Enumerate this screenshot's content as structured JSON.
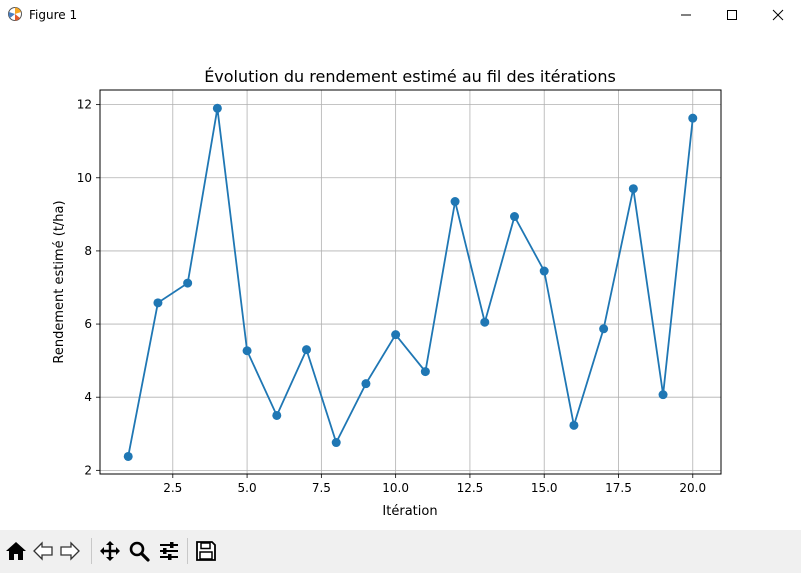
{
  "window": {
    "title": "Figure 1",
    "icon": "matplotlib-icon",
    "controls": [
      "minimize-icon",
      "maximize-icon",
      "close-icon"
    ]
  },
  "toolbar": {
    "buttons": [
      "home-icon",
      "back-arrow-icon",
      "forward-arrow-icon",
      "pan-move-icon",
      "zoom-magnifier-icon",
      "configure-subplots-icon",
      "save-disk-icon"
    ]
  },
  "colors": {
    "series": "#1f77b4",
    "grid": "#b0b0b0",
    "toolbar_bg": "#f0f0f0"
  },
  "chart_data": {
    "type": "line",
    "title": "Évolution du rendement estimé au fil des itérations",
    "xlabel": "Itération",
    "ylabel": "Rendement estimé (t/ha)",
    "xlim": [
      0.05,
      20.95
    ],
    "ylim": [
      1.9,
      12.4
    ],
    "xticks": [
      2.5,
      5.0,
      7.5,
      10.0,
      12.5,
      15.0,
      17.5,
      20.0
    ],
    "xtick_labels": [
      "2.5",
      "5.0",
      "7.5",
      "10.0",
      "12.5",
      "15.0",
      "17.5",
      "20.0"
    ],
    "yticks": [
      2,
      4,
      6,
      8,
      10,
      12
    ],
    "ytick_labels": [
      "2",
      "4",
      "6",
      "8",
      "10",
      "12"
    ],
    "grid": true,
    "marker": "circle",
    "x": [
      1,
      2,
      3,
      4,
      5,
      6,
      7,
      8,
      9,
      10,
      11,
      12,
      13,
      14,
      15,
      16,
      17,
      18,
      19,
      20
    ],
    "y": [
      2.38,
      6.58,
      7.12,
      11.9,
      5.27,
      3.5,
      5.3,
      2.76,
      4.37,
      5.71,
      4.7,
      9.35,
      6.05,
      8.94,
      7.45,
      3.23,
      5.87,
      9.7,
      4.07,
      11.63
    ]
  }
}
